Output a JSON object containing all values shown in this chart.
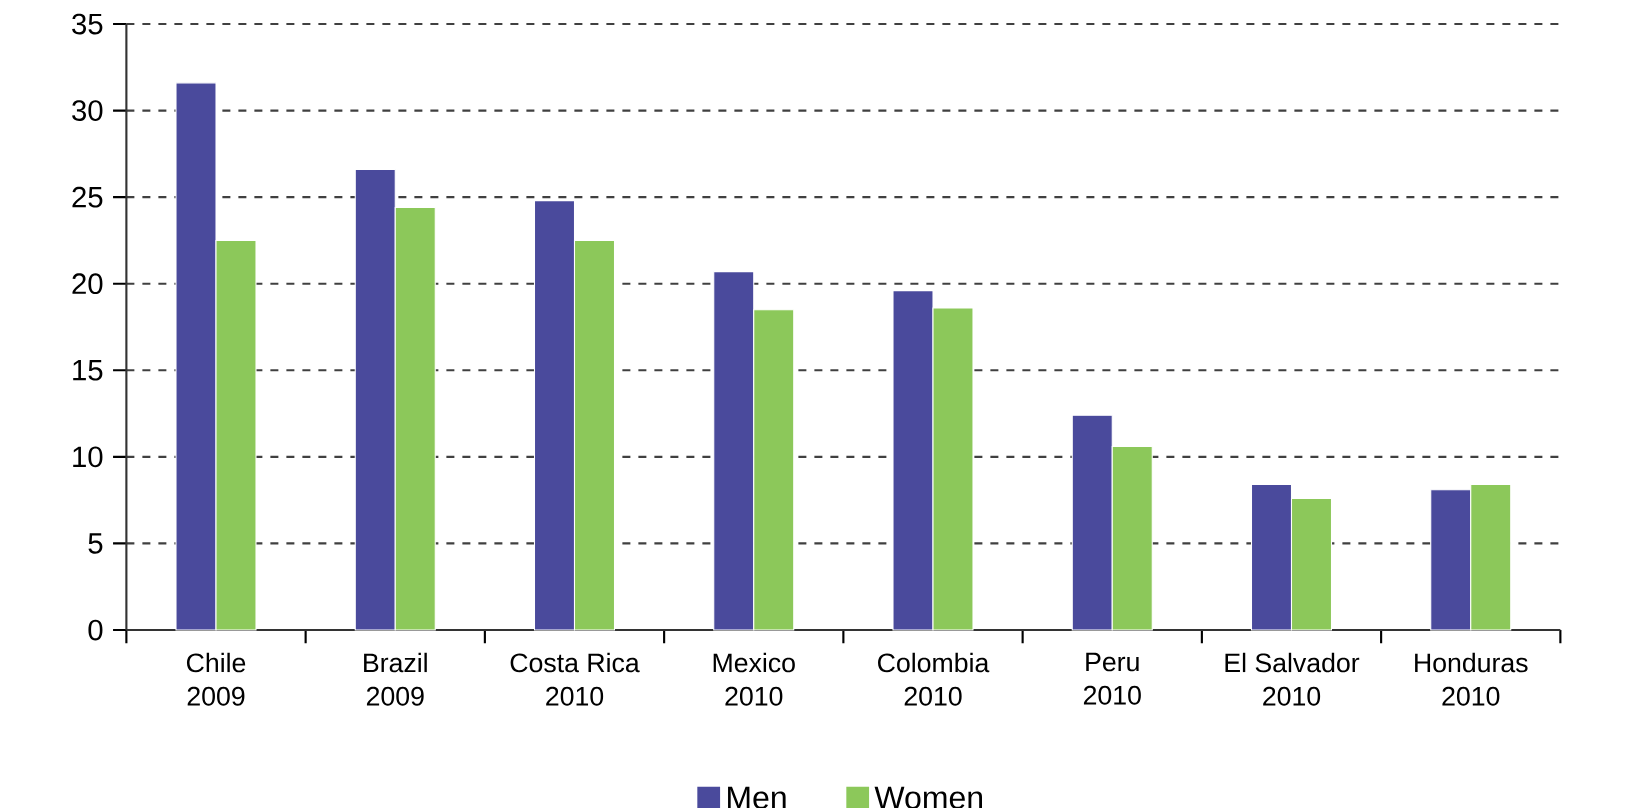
{
  "chart_data": {
    "type": "bar",
    "categories": [
      "Chile\n2009",
      "Brazil\n2009",
      "Costa Rica\n2010",
      "Mexico\n2010",
      "Colombia\n2010",
      "Peru\n2010",
      "El Salvador\n2010",
      "Honduras\n2010"
    ],
    "series": [
      {
        "name": "Men",
        "color": "#4a4a9c",
        "values": [
          31.6,
          26.6,
          24.8,
          20.7,
          19.6,
          12.4,
          8.4,
          8.1
        ]
      },
      {
        "name": "Women",
        "color": "#8cc85a",
        "values": [
          22.5,
          24.4,
          22.5,
          18.5,
          18.6,
          10.6,
          7.6,
          8.4
        ]
      }
    ],
    "ylim": [
      0,
      35
    ],
    "yticks": [
      0,
      5,
      10,
      15,
      20,
      25,
      30,
      35
    ],
    "grid": "y",
    "legend": "bottom"
  }
}
